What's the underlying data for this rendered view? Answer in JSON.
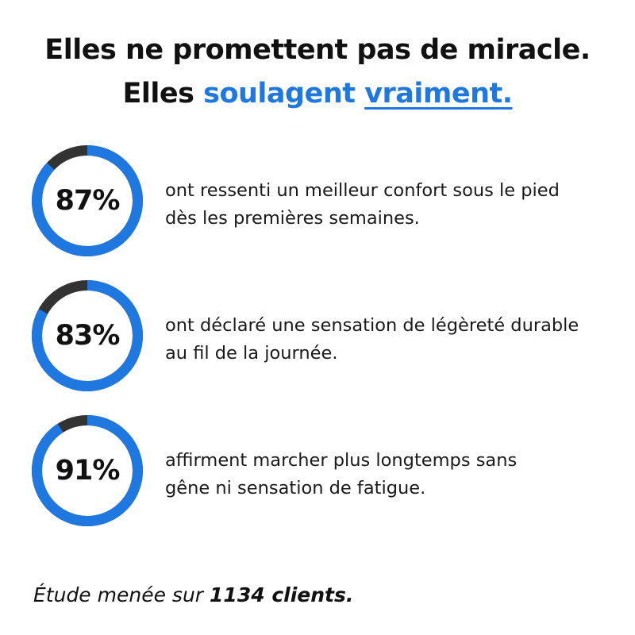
{
  "headline": {
    "line1": "Elles ne promettent pas de miracle.",
    "line2_prefix": "Elles ",
    "line2_highlight": "soulagent",
    "line2_space": " ",
    "line2_underlined": "vraiment."
  },
  "colors": {
    "accent": "#1f78e0",
    "ring_remainder": "#333333",
    "text": "#111111"
  },
  "stats": [
    {
      "value": 87,
      "label": "87%",
      "line1": "ont ressenti un meilleur confort sous le pied",
      "line2": "dès les premières semaines."
    },
    {
      "value": 83,
      "label": "83%",
      "line1": "ont déclaré une sensation de légèreté durable",
      "line2": "au fil de la journée."
    },
    {
      "value": 91,
      "label": "91%",
      "line1": "affirment marcher plus longtemps sans",
      "line2": "gêne ni sensation de fatigue."
    }
  ],
  "footer": {
    "prefix": "Étude menée sur ",
    "emphasis": "1134 clients."
  }
}
